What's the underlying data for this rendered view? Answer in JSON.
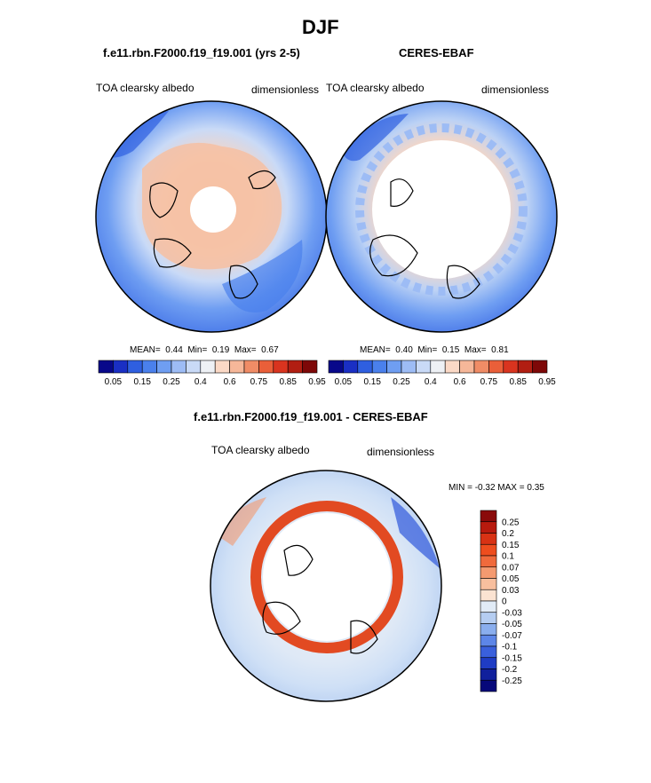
{
  "page_title": "DJF",
  "panels": [
    {
      "title": "f.e11.rbn.F2000.f19_f19.001 (yrs 2-5)",
      "left_label": "TOA clearsky albedo",
      "right_label": "dimensionless",
      "stats": {
        "mean_label": "MEAN=",
        "mean": "0.44",
        "min_label": "Min=",
        "min": "0.19",
        "max_label": "Max=",
        "max": "0.67"
      }
    },
    {
      "title": "CERES-EBAF",
      "left_label": "TOA clearsky albedo",
      "right_label": "dimensionless",
      "stats": {
        "mean_label": "MEAN=",
        "mean": "0.40",
        "min_label": "Min=",
        "min": "0.15",
        "max_label": "Max=",
        "max": "0.81"
      }
    }
  ],
  "diff": {
    "title": "f.e11.rbn.F2000.f19_f19.001 - CERES-EBAF",
    "left_label": "TOA clearsky albedo",
    "right_label": "dimensionless",
    "minmax": "MIN =  -0.32 MAX =   0.35"
  },
  "chart_data": [
    {
      "type": "heatmap",
      "projection": "polar stereographic (north pole)",
      "title": "f.e11.rbn.F2000.f19_f19.001 (yrs 2-5)",
      "variable": "TOA clearsky albedo",
      "units": "dimensionless",
      "mean": 0.44,
      "min": 0.19,
      "max": 0.67,
      "colorbar_ticks": [
        "0.05",
        "0.15",
        "0.25",
        "0.4",
        "0.6",
        "0.75",
        "0.85",
        "0.95"
      ],
      "colorbar_colors": [
        "#08088a",
        "#1a2fc4",
        "#2f5fe0",
        "#4a80ec",
        "#6f9ef2",
        "#9dbcf5",
        "#c9daf7",
        "#eef1f5",
        "#fbd9c6",
        "#f6b799",
        "#f08c66",
        "#ea5f39",
        "#d9341f",
        "#b11e12",
        "#7e0808"
      ]
    },
    {
      "type": "heatmap",
      "projection": "polar stereographic (north pole)",
      "title": "CERES-EBAF",
      "variable": "TOA clearsky albedo",
      "units": "dimensionless",
      "mean": 0.4,
      "min": 0.15,
      "max": 0.81,
      "colorbar_ticks": [
        "0.05",
        "0.15",
        "0.25",
        "0.4",
        "0.6",
        "0.75",
        "0.85",
        "0.95"
      ],
      "colorbar_colors": [
        "#08088a",
        "#1a2fc4",
        "#2f5fe0",
        "#4a80ec",
        "#6f9ef2",
        "#9dbcf5",
        "#c9daf7",
        "#eef1f5",
        "#fbd9c6",
        "#f6b799",
        "#f08c66",
        "#ea5f39",
        "#d9341f",
        "#b11e12",
        "#7e0808"
      ]
    },
    {
      "type": "heatmap",
      "projection": "polar stereographic (north pole)",
      "title": "f.e11.rbn.F2000.f19_f19.001 - CERES-EBAF",
      "variable": "TOA clearsky albedo",
      "units": "dimensionless",
      "min": -0.32,
      "max": 0.35,
      "colorbar_ticks": [
        "0.25",
        "0.2",
        "0.15",
        "0.1",
        "0.07",
        "0.05",
        "0.03",
        "0",
        "-0.03",
        "-0.05",
        "-0.07",
        "-0.1",
        "-0.15",
        "-0.2",
        "-0.25"
      ],
      "colorbar_colors": [
        "#8a0a0a",
        "#b81a0e",
        "#d83214",
        "#ee4d1e",
        "#f06a3c",
        "#f49a70",
        "#f8bf9e",
        "#fbe3d2",
        "#e1ebf6",
        "#b5cdf1",
        "#8aaeee",
        "#5d86e8",
        "#3a60dc",
        "#1f3cc4",
        "#10209c",
        "#06087a"
      ]
    }
  ]
}
